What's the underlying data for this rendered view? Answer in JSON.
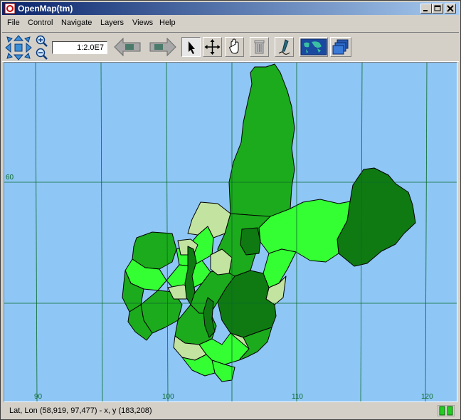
{
  "window": {
    "title": "OpenMap(tm)"
  },
  "menu": [
    "File",
    "Control",
    "Navigate",
    "Layers",
    "Views",
    "Help"
  ],
  "toolbar": {
    "scale": "1:2.0E7",
    "tools": [
      "pan-arrows",
      "zoom-in",
      "zoom-out",
      "scale-field",
      "back",
      "forward",
      "select-arrow",
      "move-cross",
      "hand",
      "trash",
      "pencil",
      "world-map",
      "layers"
    ],
    "active_tool": "select-arrow"
  },
  "map": {
    "grid_labels": {
      "lon": [
        "90",
        "100",
        "110",
        "120"
      ],
      "lat": [
        "60"
      ]
    },
    "colors": {
      "ocean": "#8ec6f5",
      "grid": "#0a6a2a",
      "region_dark": "#0f7a12",
      "region_mid": "#1cab1c",
      "region_light": "#33ff33",
      "region_pale": "#c2e4a0"
    }
  },
  "status": {
    "text": "Lat, Lon (58,919, 97,477) - x, y (183,208)",
    "indicator_color": "#22cc22"
  }
}
